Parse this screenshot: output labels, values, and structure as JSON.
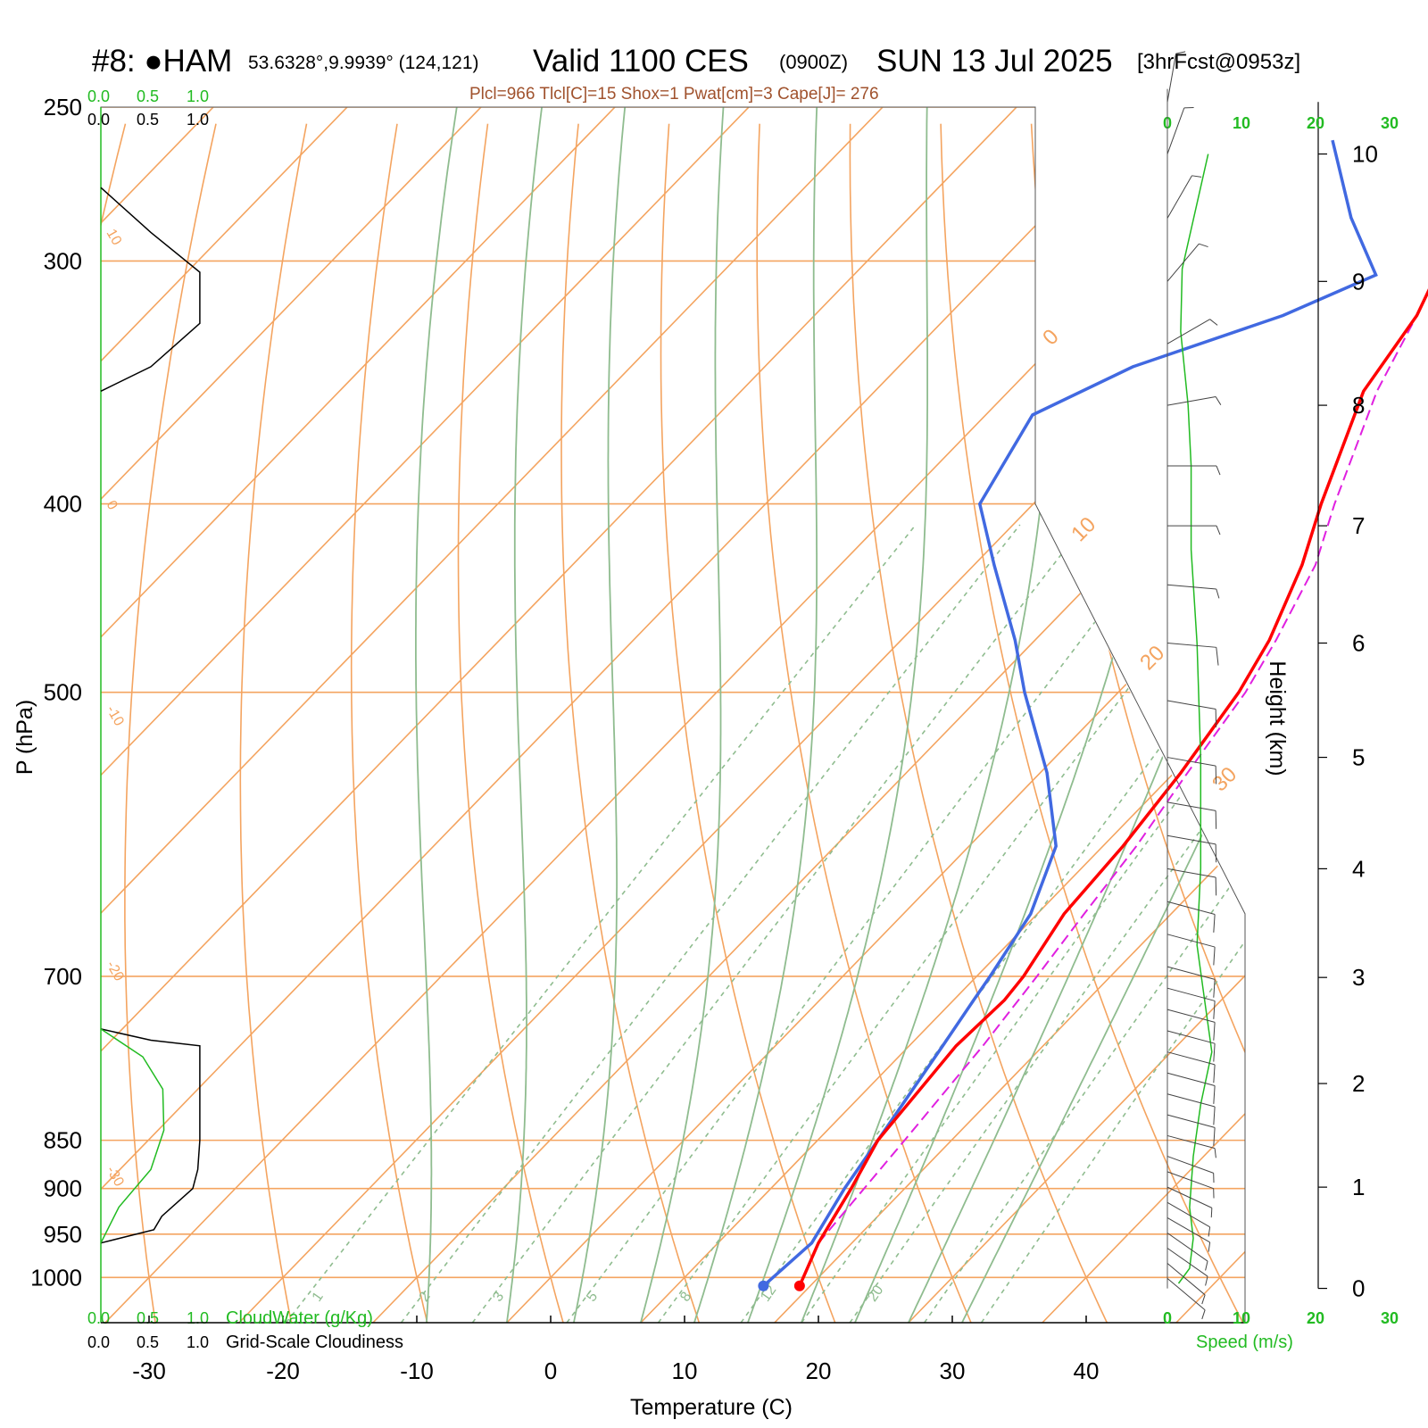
{
  "header": {
    "station": "#8: ●HAM",
    "coords": "53.6328°,9.9939° (124,121)",
    "valid": "Valid 1100 CES",
    "zulu": "(0900Z)",
    "date": "SUN 13 Jul 2025",
    "fcst": "[3hrFcst@0953z]",
    "params": "Plcl=966 Tlcl[C]=15 Shox=1 Pwat[cm]=3 Cape[J]= 276"
  },
  "colors": {
    "temperature": "#ff0000",
    "dewpoint": "#4169e1",
    "parcel": "#e020e0",
    "isotherm": "#f4a460",
    "adiabat": "#8fbc8f",
    "cloudwater": "#22bb22",
    "label_brown": "#a0522d",
    "wind_green": "#22bb22"
  },
  "chart_data": {
    "type": "skew-t log-p sounding",
    "xlabel": "Temperature (C)",
    "ylabel": "P (hPa)",
    "y2label": "Height (km)",
    "pressure_ticks": [
      250,
      300,
      400,
      500,
      700,
      850,
      900,
      950,
      1000
    ],
    "pressure_tick_labels": [
      "250",
      "300",
      "400",
      "500",
      "700",
      "850",
      "900",
      "950",
      "1000"
    ],
    "temperature_ticks": [
      -30,
      -20,
      -10,
      0,
      10,
      20,
      30,
      40
    ],
    "temperature_tick_labels": [
      "-30",
      "-20",
      "-10",
      "0",
      "10",
      "20",
      "30",
      "40"
    ],
    "height_ticks_km": [
      0,
      1,
      2,
      3,
      4,
      5,
      6,
      7,
      8,
      9,
      10
    ],
    "isotherm_labels": [
      {
        "t": 10,
        "text": "10"
      },
      {
        "t": 0,
        "text": "0"
      },
      {
        "t": -10,
        "text": "-10"
      },
      {
        "t": -20,
        "text": "-20"
      },
      {
        "t": -30,
        "text": "-30"
      }
    ],
    "isotherm_right_labels": [
      {
        "t": 0,
        "text": "0"
      },
      {
        "t": 10,
        "text": "10"
      },
      {
        "t": 20,
        "text": "20"
      },
      {
        "t": 30,
        "text": "30"
      }
    ],
    "mixing_ratio_labels": [
      {
        "t": -15.5,
        "text": "1"
      },
      {
        "t": -7.5,
        "text": "2"
      },
      {
        "t": -2,
        "text": "3"
      },
      {
        "t": 5,
        "text": "5"
      },
      {
        "t": 12,
        "text": "8"
      },
      {
        "t": 18,
        "text": "12"
      },
      {
        "t": 26,
        "text": "20"
      }
    ],
    "temperature_profile": [
      {
        "p": 1010,
        "t": 19.2
      },
      {
        "p": 960,
        "t": 17.5
      },
      {
        "p": 900,
        "t": 16.0
      },
      {
        "p": 850,
        "t": 14.5
      },
      {
        "p": 760,
        "t": 13.5
      },
      {
        "p": 720,
        "t": 13.8
      },
      {
        "p": 700,
        "t": 13.5
      },
      {
        "p": 650,
        "t": 12.0
      },
      {
        "p": 600,
        "t": 11.5
      },
      {
        "p": 550,
        "t": 10.5
      },
      {
        "p": 500,
        "t": 9.0
      },
      {
        "p": 470,
        "t": 7.5
      },
      {
        "p": 430,
        "t": 4.5
      },
      {
        "p": 400,
        "t": 1.5
      },
      {
        "p": 350,
        "t": -3.5
      },
      {
        "p": 320,
        "t": -5.0
      },
      {
        "p": 305,
        "t": -6.5
      },
      {
        "p": 280,
        "t": -5.5
      },
      {
        "p": 260,
        "t": -1.0
      }
    ],
    "dewpoint_profile": [
      {
        "p": 1010,
        "t": 16.5
      },
      {
        "p": 960,
        "t": 17.0
      },
      {
        "p": 900,
        "t": 15.5
      },
      {
        "p": 850,
        "t": 14.5
      },
      {
        "p": 760,
        "t": 12.5
      },
      {
        "p": 720,
        "t": 11.5
      },
      {
        "p": 700,
        "t": 11.0
      },
      {
        "p": 650,
        "t": 9.5
      },
      {
        "p": 600,
        "t": 6.5
      },
      {
        "p": 550,
        "t": 0.5
      },
      {
        "p": 500,
        "t": -7.0
      },
      {
        "p": 470,
        "t": -11.5
      },
      {
        "p": 430,
        "t": -18.5
      },
      {
        "p": 400,
        "t": -24.0
      },
      {
        "p": 360,
        "t": -26.5
      },
      {
        "p": 340,
        "t": -22.5
      },
      {
        "p": 320,
        "t": -15.0
      },
      {
        "p": 305,
        "t": -11.0
      },
      {
        "p": 285,
        "t": -17.0
      },
      {
        "p": 260,
        "t": -24.0
      }
    ],
    "parcel_profile": [
      {
        "p": 960,
        "t": 17.5
      },
      {
        "p": 850,
        "t": 16.5
      },
      {
        "p": 760,
        "t": 15.5
      },
      {
        "p": 700,
        "t": 14.5
      },
      {
        "p": 650,
        "t": 13.5
      },
      {
        "p": 600,
        "t": 12.5
      },
      {
        "p": 550,
        "t": 11.0
      },
      {
        "p": 500,
        "t": 9.5
      },
      {
        "p": 470,
        "t": 8.0
      },
      {
        "p": 430,
        "t": 5.5
      },
      {
        "p": 400,
        "t": 2.5
      },
      {
        "p": 350,
        "t": -2.5
      },
      {
        "p": 320,
        "t": -5.0
      }
    ],
    "cloud_water": {
      "label": "CloudWater (g/Kg)",
      "scale_labels": [
        "0.0",
        "0.5",
        "1.0"
      ],
      "profile": [
        {
          "p": 960,
          "v": 0.0
        },
        {
          "p": 920,
          "v": 0.18
        },
        {
          "p": 880,
          "v": 0.5
        },
        {
          "p": 840,
          "v": 0.63
        },
        {
          "p": 800,
          "v": 0.62
        },
        {
          "p": 770,
          "v": 0.42
        },
        {
          "p": 745,
          "v": 0.0
        }
      ]
    },
    "cloudiness": {
      "label": "Grid-Scale Cloudiness",
      "scale_labels": [
        "0.0",
        "0.5",
        "1.0"
      ],
      "profiles": [
        [
          {
            "p": 960,
            "v": 0.0
          },
          {
            "p": 945,
            "v": 0.53
          },
          {
            "p": 930,
            "v": 0.61
          },
          {
            "p": 900,
            "v": 0.92
          },
          {
            "p": 880,
            "v": 0.97
          },
          {
            "p": 850,
            "v": 0.99
          },
          {
            "p": 760,
            "v": 0.99
          },
          {
            "p": 755,
            "v": 0.5
          },
          {
            "p": 745,
            "v": 0.0
          }
        ],
        [
          {
            "p": 275,
            "v": 0.0
          },
          {
            "p": 290,
            "v": 0.5
          },
          {
            "p": 304,
            "v": 0.99
          },
          {
            "p": 323,
            "v": 0.99
          },
          {
            "p": 340,
            "v": 0.5
          },
          {
            "p": 350,
            "v": 0.0
          }
        ]
      ]
    },
    "wind_speed": {
      "label": "Speed (m/s)",
      "ticks": [
        0,
        10,
        20,
        30
      ],
      "tick_labels": [
        "0",
        "10",
        "20",
        "30"
      ],
      "profile_km": [
        {
          "h": 0.05,
          "v": 1.5
        },
        {
          "h": 0.2,
          "v": 3.0
        },
        {
          "h": 0.5,
          "v": 3.5
        },
        {
          "h": 0.8,
          "v": 3.0
        },
        {
          "h": 1.3,
          "v": 3.5
        },
        {
          "h": 1.8,
          "v": 4.5
        },
        {
          "h": 2.3,
          "v": 6.0
        },
        {
          "h": 2.8,
          "v": 5.0
        },
        {
          "h": 3.3,
          "v": 4.0
        },
        {
          "h": 4.0,
          "v": 4.5
        },
        {
          "h": 5.0,
          "v": 4.5
        },
        {
          "h": 6.0,
          "v": 4.0
        },
        {
          "h": 6.8,
          "v": 3.2
        },
        {
          "h": 7.5,
          "v": 3.2
        },
        {
          "h": 8.0,
          "v": 2.8
        },
        {
          "h": 8.6,
          "v": 1.8
        },
        {
          "h": 9.1,
          "v": 2.0
        },
        {
          "h": 10.0,
          "v": 5.5
        }
      ]
    },
    "wind_barbs": [
      {
        "h": 0.1,
        "dir": 230,
        "spd": 6
      },
      {
        "h": 0.25,
        "dir": 230,
        "spd": 7
      },
      {
        "h": 0.4,
        "dir": 235,
        "spd": 7
      },
      {
        "h": 0.55,
        "dir": 235,
        "spd": 7
      },
      {
        "h": 0.7,
        "dir": 240,
        "spd": 6
      },
      {
        "h": 0.85,
        "dir": 240,
        "spd": 5
      },
      {
        "h": 1.0,
        "dir": 245,
        "spd": 5
      },
      {
        "h": 1.15,
        "dir": 250,
        "spd": 6
      },
      {
        "h": 1.3,
        "dir": 250,
        "spd": 6
      },
      {
        "h": 1.5,
        "dir": 255,
        "spd": 7
      },
      {
        "h": 1.7,
        "dir": 255,
        "spd": 9
      },
      {
        "h": 1.9,
        "dir": 255,
        "spd": 10
      },
      {
        "h": 2.1,
        "dir": 255,
        "spd": 11
      },
      {
        "h": 2.3,
        "dir": 255,
        "spd": 12
      },
      {
        "h": 2.5,
        "dir": 255,
        "spd": 12
      },
      {
        "h": 2.7,
        "dir": 255,
        "spd": 12
      },
      {
        "h": 2.9,
        "dir": 255,
        "spd": 11
      },
      {
        "h": 3.1,
        "dir": 255,
        "spd": 10
      },
      {
        "h": 3.4,
        "dir": 255,
        "spd": 9
      },
      {
        "h": 3.7,
        "dir": 255,
        "spd": 9
      },
      {
        "h": 4.0,
        "dir": 260,
        "spd": 9
      },
      {
        "h": 4.3,
        "dir": 260,
        "spd": 9
      },
      {
        "h": 4.6,
        "dir": 260,
        "spd": 9
      },
      {
        "h": 5.0,
        "dir": 260,
        "spd": 8
      },
      {
        "h": 5.5,
        "dir": 260,
        "spd": 8
      },
      {
        "h": 6.0,
        "dir": 265,
        "spd": 8
      },
      {
        "h": 6.5,
        "dir": 265,
        "spd": 7
      },
      {
        "h": 7.0,
        "dir": 270,
        "spd": 6
      },
      {
        "h": 7.5,
        "dir": 270,
        "spd": 6
      },
      {
        "h": 8.0,
        "dir": 280,
        "spd": 4
      },
      {
        "h": 8.5,
        "dir": 300,
        "spd": 3
      },
      {
        "h": 9.0,
        "dir": 320,
        "spd": 3
      },
      {
        "h": 9.5,
        "dir": 330,
        "spd": 3
      },
      {
        "h": 10.0,
        "dir": 340,
        "spd": 4
      },
      {
        "h": 10.4,
        "dir": 350,
        "spd": 5
      }
    ]
  }
}
